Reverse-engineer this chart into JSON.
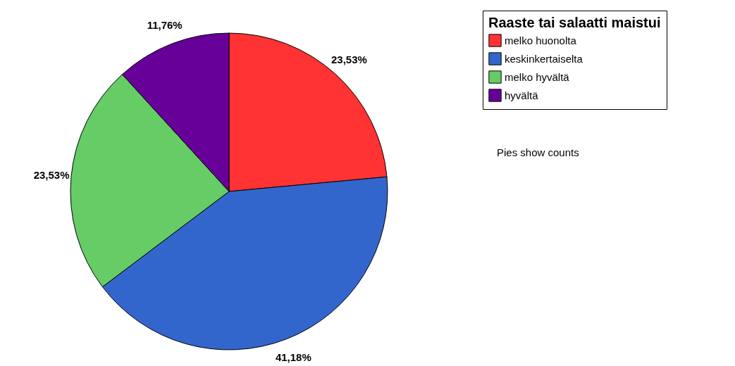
{
  "chart_data": {
    "type": "pie",
    "legend_title": "Raaste tai salaatti maistui",
    "categories": [
      "melko huonolta",
      "keskinkertaiselta",
      "melko hyvältä",
      "hyvältä"
    ],
    "values": [
      23.53,
      41.18,
      23.53,
      11.76
    ],
    "colors": [
      "#ff3333",
      "#3366cc",
      "#66cc66",
      "#660099"
    ],
    "value_labels": [
      "23,53%",
      "41,18%",
      "23,53%",
      "11,76%"
    ],
    "legend": "top right",
    "annotations": [
      "Pies show counts"
    ]
  }
}
